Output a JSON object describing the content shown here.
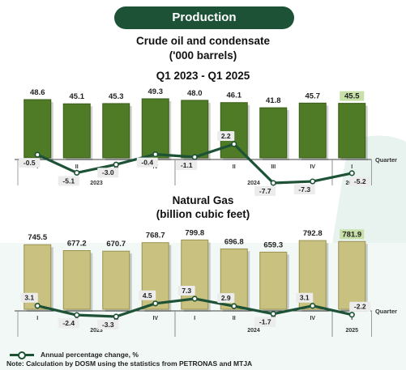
{
  "header": {
    "label": "Production"
  },
  "chart_data": [
    {
      "type": "bar",
      "title": "Crude oil and condensate",
      "unit": "('000 barrels)",
      "period": "Q1 2023 - Q1 2025",
      "axis_label": "Quarter",
      "categories": [
        "I",
        "II",
        "III",
        "IV",
        "I",
        "II",
        "III",
        "IV",
        "I"
      ],
      "years": [
        {
          "label": "2023",
          "from": 0,
          "to": 3
        },
        {
          "label": "2024",
          "from": 4,
          "to": 7
        },
        {
          "label": "2025",
          "from": 8,
          "to": 8
        }
      ],
      "values": [
        48.6,
        45.1,
        45.3,
        49.3,
        48.0,
        46.1,
        41.8,
        45.7,
        45.5
      ],
      "value_labels": [
        "48.6",
        "45.1",
        "45.3",
        "49.3",
        "48.0",
        "46.1",
        "41.8",
        "45.7",
        "45.5"
      ],
      "ylim": [
        0,
        52
      ],
      "line_series": {
        "values": [
          -0.5,
          -5.1,
          -3.0,
          -0.4,
          -1.1,
          2.2,
          -7.7,
          -7.3,
          -5.2
        ],
        "labels": [
          "-0.5",
          "-5.1",
          "-3.0",
          "-0.4",
          "-1.1",
          "2.2",
          "-7.7",
          "-7.3",
          "-5.2"
        ]
      },
      "highlight_index": 8
    },
    {
      "type": "bar",
      "title": "Natural Gas",
      "unit": "(billion cubic feet)",
      "axis_label": "Quarter",
      "categories": [
        "I",
        "II",
        "III",
        "IV",
        "I",
        "II",
        "III",
        "IV",
        "I"
      ],
      "years": [
        {
          "label": "2023",
          "from": 0,
          "to": 3
        },
        {
          "label": "2024",
          "from": 4,
          "to": 7
        },
        {
          "label": "2025",
          "from": 8,
          "to": 8
        }
      ],
      "values": [
        745.5,
        677.2,
        670.7,
        768.7,
        799.8,
        696.8,
        659.3,
        792.8,
        781.9
      ],
      "value_labels": [
        "745.5",
        "677.2",
        "670.7",
        "768.7",
        "799.8",
        "696.8",
        "659.3",
        "792.8",
        "781.9"
      ],
      "ylim": [
        0,
        850
      ],
      "line_series": {
        "values": [
          3.1,
          -2.4,
          -3.3,
          4.5,
          7.3,
          2.9,
          -1.7,
          3.1,
          -2.2
        ],
        "labels": [
          "3.1",
          "-2.4",
          "-3.3",
          "4.5",
          "7.3",
          "2.9",
          "-1.7",
          "3.1",
          "-2.2"
        ]
      },
      "highlight_index": 8
    }
  ],
  "legend": {
    "label": "Annual percentage change, %"
  },
  "note": "Note: Calculation by DOSM using the statistics from PETRONAS and MTJA",
  "colors": {
    "header_bg": "#1d5236",
    "oil_bar": "#4f7a26",
    "oil_bar_edge": "#3a5c1a",
    "gas_bar": "#c9c17f",
    "gas_bar_edge": "#9a9350",
    "line": "#1d5236",
    "label_bg": "#ececec",
    "highlight_bg": "#c6e0a8",
    "background_tint": "#e6f3ef"
  }
}
